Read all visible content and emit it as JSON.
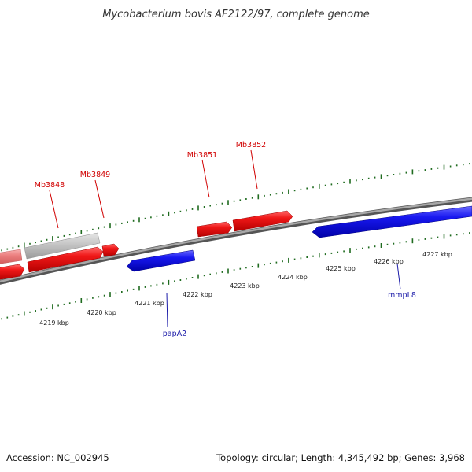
{
  "title": "Mycobacterium bovis AF2122/97, complete genome",
  "footer": {
    "accession": "Accession: NC_002945",
    "summary": "Topology: circular; Length: 4,345,492 bp; Genes: 3,968"
  },
  "colors": {
    "forward_gene": "#e81010",
    "reverse_gene": "#1414e6",
    "pseudo_gene": "#c8c8c8",
    "faded_gene": "#ec8080",
    "backbone": "#8a8a8a",
    "ticks": "#1f6b1f",
    "forward_label": "#d00000",
    "reverse_label": "#1a1aa8"
  },
  "tick_labels": [
    "4219 kbp",
    "4220 kbp",
    "4221 kbp",
    "4222 kbp",
    "4223 kbp",
    "4224 kbp",
    "4225 kbp",
    "4226 kbp",
    "4227 kbp"
  ],
  "gene_labels": {
    "forward": [
      "Mb3848",
      "Mb3849",
      "Mb3851",
      "Mb3852"
    ],
    "reverse": [
      "papA2",
      "mmpL8"
    ]
  }
}
